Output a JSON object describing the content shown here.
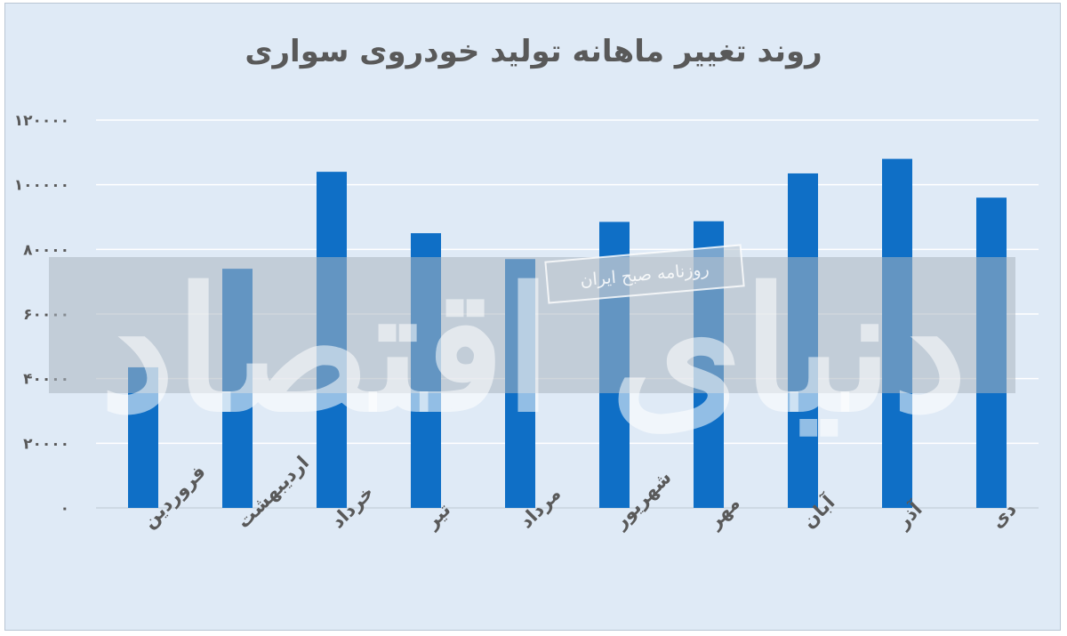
{
  "chart_data": {
    "type": "bar",
    "title": "روند تغییر ماهانه تولید خودروی سواری",
    "categories": [
      "فروردین",
      "اردیبهشت",
      "خرداد",
      "تیر",
      "مرداد",
      "شهریور",
      "مهر",
      "آبان",
      "آذر",
      "دی"
    ],
    "values": [
      43500,
      74000,
      104000,
      85000,
      77000,
      88500,
      88700,
      103500,
      108000,
      96000
    ],
    "y_tick_labels": [
      "۰",
      "۲۰۰۰۰",
      "۴۰۰۰۰",
      "۶۰۰۰۰",
      "۸۰۰۰۰",
      "۱۰۰۰۰۰",
      "۱۲۰۰۰۰"
    ],
    "ylim": [
      0,
      120000
    ],
    "y_step": 20000,
    "grid": true,
    "legend": "none",
    "bar_color": "#0f6fc6"
  },
  "watermark": {
    "publisher": "روزنامه صبح ایران",
    "logo_text": "دنیای اقتصاد"
  },
  "colors": {
    "background": "#dfeaf6",
    "grid": "#ffffff",
    "text": "#595959",
    "band": "#a9b4c0"
  }
}
